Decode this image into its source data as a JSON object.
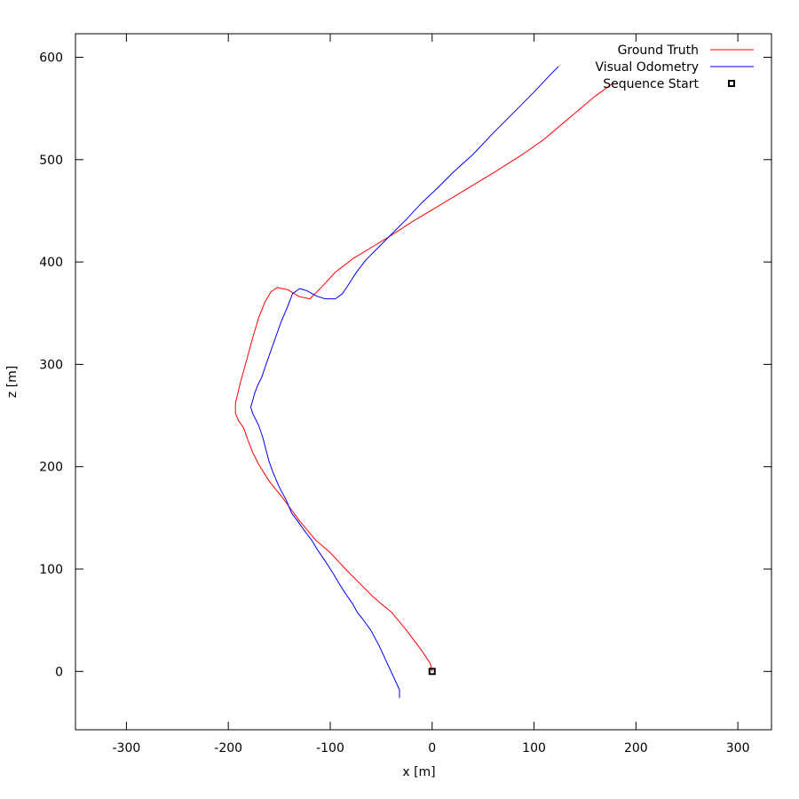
{
  "chart_data": {
    "type": "line",
    "title": "",
    "xlabel": "x [m]",
    "ylabel": "z [m]",
    "xlim": [
      -350,
      333
    ],
    "ylim": [
      -57,
      623
    ],
    "xticks": [
      -300,
      -200,
      -100,
      0,
      100,
      200,
      300
    ],
    "yticks": [
      0,
      100,
      200,
      300,
      400,
      500,
      600
    ],
    "grid": false,
    "legend_position": "top-right",
    "series": [
      {
        "name": "Ground Truth",
        "color": "#ff0000",
        "points": [
          [
            0,
            0
          ],
          [
            -2,
            8
          ],
          [
            -10,
            20
          ],
          [
            -25,
            40
          ],
          [
            -40,
            58
          ],
          [
            -50,
            66
          ],
          [
            -58,
            73
          ],
          [
            -70,
            85
          ],
          [
            -85,
            100
          ],
          [
            -100,
            116
          ],
          [
            -115,
            129
          ],
          [
            -130,
            147
          ],
          [
            -147,
            170
          ],
          [
            -160,
            186
          ],
          [
            -170,
            202
          ],
          [
            -176,
            214
          ],
          [
            -180,
            224
          ],
          [
            -185,
            238
          ],
          [
            -190,
            245
          ],
          [
            -193,
            252
          ],
          [
            -193,
            262
          ],
          [
            -188,
            283
          ],
          [
            -182,
            304
          ],
          [
            -176,
            326
          ],
          [
            -170,
            346
          ],
          [
            -164,
            361
          ],
          [
            -158,
            371
          ],
          [
            -152,
            375
          ],
          [
            -142,
            373
          ],
          [
            -130,
            366
          ],
          [
            -120,
            364
          ],
          [
            -108,
            376
          ],
          [
            -95,
            390
          ],
          [
            -78,
            403
          ],
          [
            -60,
            414
          ],
          [
            -40,
            426
          ],
          [
            -20,
            439
          ],
          [
            0,
            451
          ],
          [
            30,
            469
          ],
          [
            60,
            487
          ],
          [
            90,
            506
          ],
          [
            110,
            520
          ],
          [
            135,
            541
          ],
          [
            160,
            562
          ],
          [
            178,
            575
          ]
        ]
      },
      {
        "name": "Visual Odometry",
        "color": "#0000ff",
        "points": [
          [
            -32,
            -26
          ],
          [
            -32,
            -18
          ],
          [
            -38,
            -5
          ],
          [
            -45,
            10
          ],
          [
            -52,
            25
          ],
          [
            -60,
            40
          ],
          [
            -68,
            51
          ],
          [
            -73,
            57
          ],
          [
            -78,
            66
          ],
          [
            -85,
            76
          ],
          [
            -92,
            87
          ],
          [
            -98,
            97
          ],
          [
            -105,
            108
          ],
          [
            -112,
            118
          ],
          [
            -118,
            128
          ],
          [
            -125,
            137
          ],
          [
            -132,
            147
          ],
          [
            -138,
            155
          ],
          [
            -143,
            167
          ],
          [
            -150,
            180
          ],
          [
            -156,
            194
          ],
          [
            -160,
            205
          ],
          [
            -163,
            216
          ],
          [
            -166,
            228
          ],
          [
            -170,
            240
          ],
          [
            -174,
            248
          ],
          [
            -176,
            252
          ],
          [
            -178,
            258
          ],
          [
            -174,
            272
          ],
          [
            -171,
            280
          ],
          [
            -167,
            288
          ],
          [
            -163,
            300
          ],
          [
            -158,
            314
          ],
          [
            -153,
            328
          ],
          [
            -148,
            342
          ],
          [
            -142,
            356
          ],
          [
            -137,
            369
          ],
          [
            -130,
            374
          ],
          [
            -123,
            372
          ],
          [
            -114,
            367
          ],
          [
            -105,
            364
          ],
          [
            -95,
            364
          ],
          [
            -88,
            369
          ],
          [
            -82,
            378
          ],
          [
            -75,
            389
          ],
          [
            -65,
            402
          ],
          [
            -53,
            414
          ],
          [
            -40,
            427
          ],
          [
            -25,
            442
          ],
          [
            -10,
            458
          ],
          [
            5,
            472
          ],
          [
            20,
            487
          ],
          [
            40,
            505
          ],
          [
            60,
            526
          ],
          [
            80,
            546
          ],
          [
            100,
            566
          ],
          [
            115,
            582
          ],
          [
            124,
            591
          ]
        ]
      },
      {
        "name": "Sequence Start",
        "color": "#000000",
        "marker": "square",
        "points": [
          [
            0,
            0
          ]
        ]
      }
    ]
  }
}
